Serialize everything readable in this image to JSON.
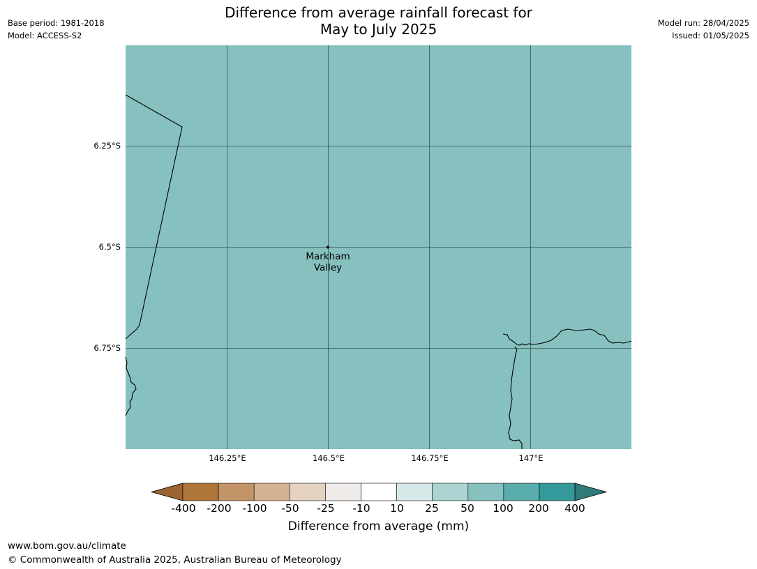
{
  "header": {
    "title_line1": "Difference from average rainfall forecast for",
    "title_line2": "May to July 2025",
    "base_period": "Base period: 1981-2018",
    "model": "Model: ACCESS-S2",
    "model_run": "Model run: 28/04/2025",
    "issued": "Issued: 01/05/2025"
  },
  "map": {
    "fill_color": "#86c0bf",
    "latitude_labels": [
      "6.25°S",
      "6.5°S",
      "6.75°S"
    ],
    "longitude_labels": [
      "146.25°E",
      "146.5°E",
      "146.75°E",
      "147°E"
    ],
    "place_marker": {
      "name_line1": "Markham",
      "name_line2": "Valley",
      "lon": 146.5,
      "lat": -6.5
    }
  },
  "colorbar": {
    "title": "Difference from average (mm)",
    "tick_labels": [
      "-400",
      "-200",
      "-100",
      "-50",
      "-25",
      "-10",
      "10",
      "25",
      "50",
      "100",
      "200",
      "400"
    ],
    "colors": [
      "#9c6430",
      "#b07538",
      "#c29468",
      "#d4b392",
      "#e4d2c0",
      "#efebe8",
      "#ffffff",
      "#d6e9e8",
      "#acd4d3",
      "#86c0bf",
      "#5aadad",
      "#34999a",
      "#2d7b7b"
    ]
  },
  "footer": {
    "url": "www.bom.gov.au/climate",
    "copyright": "© Commonwealth of Australia 2025, Australian Bureau of Meteorology"
  }
}
